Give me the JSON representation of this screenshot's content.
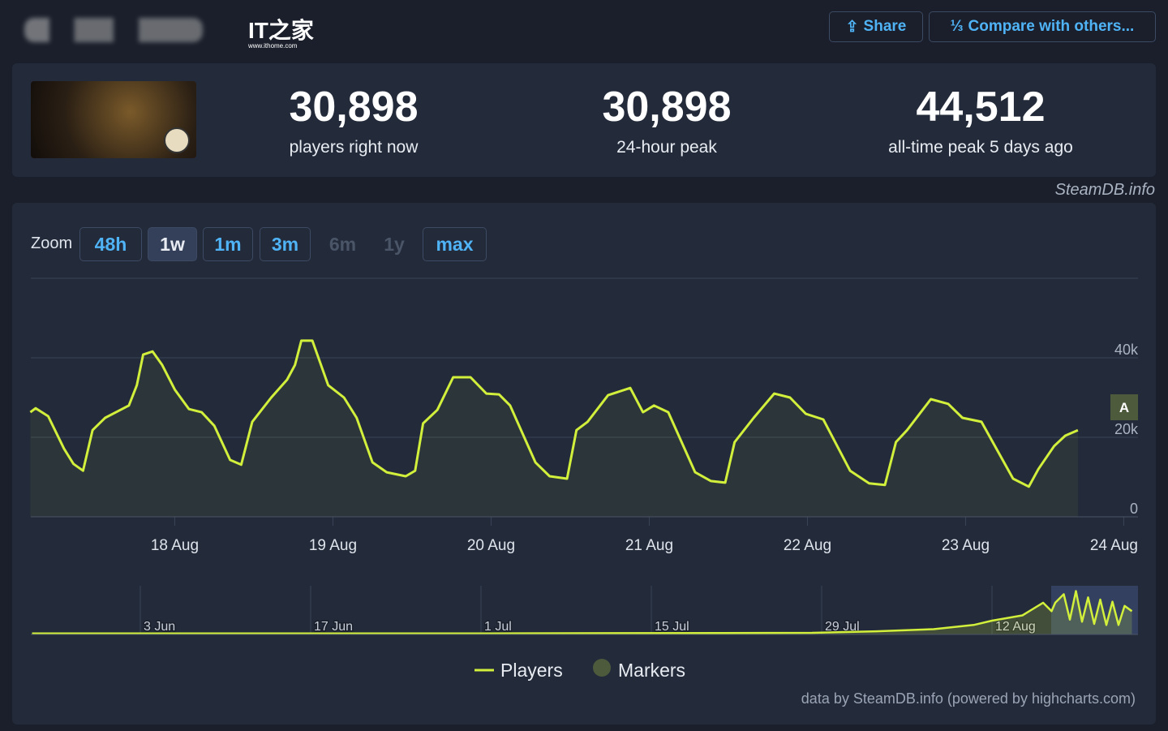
{
  "header": {
    "logo": "IT之家",
    "logo_url": "www.ithome.com",
    "share": "Share",
    "compare": "Compare with others..."
  },
  "stats": [
    {
      "value": "30,898",
      "label": "players right now"
    },
    {
      "value": "30,898",
      "label": "24-hour peak"
    },
    {
      "value": "44,512",
      "label": "all-time peak 5 days ago"
    }
  ],
  "source": "SteamDB.info",
  "zoom": {
    "label": "Zoom",
    "options": [
      "48h",
      "1w",
      "1m",
      "3m",
      "6m",
      "1y",
      "max"
    ],
    "active": "1w",
    "disabled": [
      "6m",
      "1y"
    ]
  },
  "chart_data": [
    {
      "type": "line",
      "x": [
        17.087,
        17.12,
        17.2,
        17.3,
        17.36,
        17.42,
        17.48,
        17.56,
        17.71,
        17.76,
        17.8,
        17.86,
        17.92,
        18.0,
        18.09,
        18.17,
        18.25,
        18.35,
        18.42,
        18.49,
        18.61,
        18.71,
        18.76,
        18.8,
        18.87,
        18.97,
        19.07,
        19.15,
        19.25,
        19.34,
        19.46,
        19.52,
        19.57,
        19.66,
        19.76,
        19.87,
        19.97,
        20.05,
        20.12,
        20.28,
        20.37,
        20.48,
        20.54,
        20.61,
        20.74,
        20.88,
        20.96,
        21.03,
        21.12,
        21.29,
        21.39,
        21.48,
        21.54,
        21.66,
        21.79,
        21.89,
        21.99,
        22.1,
        22.27,
        22.39,
        22.49,
        22.56,
        22.63,
        22.78,
        22.89,
        22.98,
        23.1,
        23.3,
        23.4,
        23.46,
        23.56,
        23.63,
        23.71
      ],
      "series": [
        {
          "name": "Players",
          "color": "#d2ef3c",
          "values": [
            26.3,
            27.3,
            25.3,
            17.1,
            13.3,
            11.6,
            21.8,
            24.9,
            28.0,
            33.1,
            40.8,
            41.6,
            38.2,
            32.0,
            27.1,
            26.3,
            22.9,
            14.3,
            13.1,
            23.9,
            30.0,
            34.5,
            38.2,
            44.3,
            44.3,
            33.1,
            30.0,
            24.9,
            13.7,
            11.2,
            10.2,
            11.6,
            23.5,
            26.9,
            35.1,
            35.1,
            31.0,
            30.8,
            28.0,
            13.7,
            10.2,
            9.6,
            21.8,
            23.9,
            30.6,
            32.4,
            26.3,
            28.0,
            26.3,
            11.2,
            9.0,
            8.6,
            18.8,
            24.9,
            31.0,
            30.0,
            25.9,
            24.5,
            11.6,
            8.4,
            8.0,
            18.8,
            21.8,
            29.6,
            28.4,
            24.9,
            23.9,
            9.6,
            7.6,
            12.0,
            17.8,
            20.4,
            21.8
          ]
        }
      ],
      "xlim": [
        17.09,
        24.09
      ],
      "xticks": [
        {
          "value": 18,
          "label": "18 Aug"
        },
        {
          "value": 19,
          "label": "19 Aug"
        },
        {
          "value": 20,
          "label": "20 Aug"
        },
        {
          "value": 21,
          "label": "21 Aug"
        },
        {
          "value": 22,
          "label": "22 Aug"
        },
        {
          "value": 23,
          "label": "23 Aug"
        },
        {
          "value": 24,
          "label": "24 Aug"
        }
      ],
      "ylim": [
        0,
        60
      ],
      "yticks": [
        0,
        {
          "value": 20,
          "label": "20k"
        },
        {
          "value": 40,
          "label": "40k"
        }
      ],
      "grid": true,
      "annotation": "A",
      "marker_legend": "Markers",
      "marker_color": "#4d5a3c",
      "credits": "data by SteamDB.info (powered by highcharts.com)"
    },
    {
      "type": "area",
      "x": [
        145.1,
        182.5,
        209.2,
        214.5,
        219.2,
        222.5,
        224,
        226.5,
        228.2,
        228.9,
        229.2,
        229.9,
        230.4,
        230.9,
        231.4,
        231.9,
        232.4,
        232.9,
        233.4,
        233.9,
        234.4,
        234.9,
        235.5
      ],
      "series": [
        {
          "name": "Players",
          "color": "#d2ef3c",
          "values": [
            1.0,
            1.0,
            1.5,
            3,
            5,
            9,
            13,
            18,
            30,
            22,
            30,
            38,
            14,
            41,
            12,
            35,
            10,
            33,
            9,
            31,
            9,
            27,
            22
          ]
        }
      ],
      "xlim": [
        145,
        236
      ],
      "xticks": [
        {
          "value": 154,
          "label": "3 Jun"
        },
        {
          "value": 168,
          "label": "17 Jun"
        },
        {
          "value": 182,
          "label": "1 Jul"
        },
        {
          "value": 196,
          "label": "15 Jul"
        },
        {
          "value": 210,
          "label": "29 Jul"
        },
        {
          "value": 224,
          "label": "12 Aug"
        }
      ],
      "ylim": [
        0,
        46
      ]
    }
  ]
}
